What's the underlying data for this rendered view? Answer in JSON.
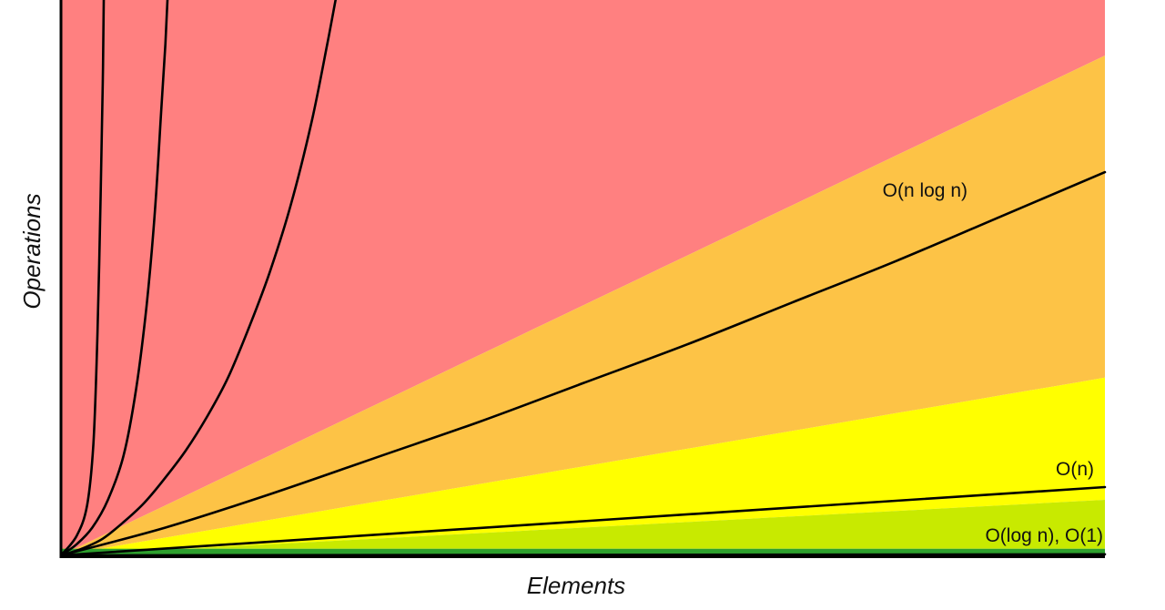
{
  "chart_data": {
    "type": "line",
    "title": "",
    "xlabel": "Elements",
    "ylabel": "Operations",
    "xlim": [
      0,
      100
    ],
    "ylim": [
      0,
      100
    ],
    "grid": false,
    "legend": "none",
    "regions": [
      {
        "color": "#ff8080",
        "upper": "top",
        "lower": "y = 0.9x"
      },
      {
        "color": "#fdc346",
        "upper": "y = 0.9x",
        "lower": "y = 0.32x"
      },
      {
        "color": "#ffff00",
        "upper": "y = 0.32x",
        "lower": "y = 0.1x"
      },
      {
        "color": "#c8ea00",
        "upper": "y = 0.1x",
        "lower": "y = 1.2"
      },
      {
        "color": "#2ea02e",
        "upper": "y = 1.2",
        "lower": "y = 0"
      }
    ],
    "series": [
      {
        "name": "O(n log n)",
        "labeled": true,
        "points": [
          [
            0,
            0
          ],
          [
            10,
            5
          ],
          [
            20,
            11
          ],
          [
            30,
            17.5
          ],
          [
            40,
            24
          ],
          [
            50,
            31
          ],
          [
            60,
            38
          ],
          [
            70,
            45.5
          ],
          [
            80,
            53
          ],
          [
            90,
            61
          ],
          [
            100,
            69
          ]
        ]
      },
      {
        "name": "O(n)",
        "labeled": true,
        "points": [
          [
            0,
            0
          ],
          [
            100,
            12.3
          ]
        ]
      },
      {
        "name": "O(log n), O(1)",
        "labeled": true,
        "points": [
          [
            0,
            0
          ],
          [
            100,
            0.2
          ]
        ]
      },
      {
        "name": "",
        "labeled": false,
        "points": [
          [
            0,
            0
          ],
          [
            2,
            1.2
          ],
          [
            4,
            3
          ],
          [
            6,
            6
          ],
          [
            8,
            9.5
          ],
          [
            10,
            14
          ],
          [
            12,
            19
          ],
          [
            14,
            25
          ],
          [
            16,
            32
          ],
          [
            18,
            41
          ],
          [
            20,
            51
          ],
          [
            22,
            63
          ],
          [
            24,
            78
          ],
          [
            25.5,
            92
          ],
          [
            26.3,
            100
          ]
        ]
      },
      {
        "name": "",
        "labeled": false,
        "points": [
          [
            0,
            0
          ],
          [
            1.5,
            2
          ],
          [
            3,
            5
          ],
          [
            4.5,
            10
          ],
          [
            6,
            18
          ],
          [
            7.2,
            30
          ],
          [
            8.2,
            45
          ],
          [
            9,
            62
          ],
          [
            9.6,
            80
          ],
          [
            10,
            92
          ],
          [
            10.2,
            100
          ]
        ]
      },
      {
        "name": "",
        "labeled": false,
        "points": [
          [
            0,
            0
          ],
          [
            1.5,
            3.5
          ],
          [
            2.5,
            9
          ],
          [
            3.1,
            20
          ],
          [
            3.5,
            40
          ],
          [
            3.8,
            65
          ],
          [
            4.0,
            85
          ],
          [
            4.1,
            100
          ]
        ]
      }
    ]
  }
}
